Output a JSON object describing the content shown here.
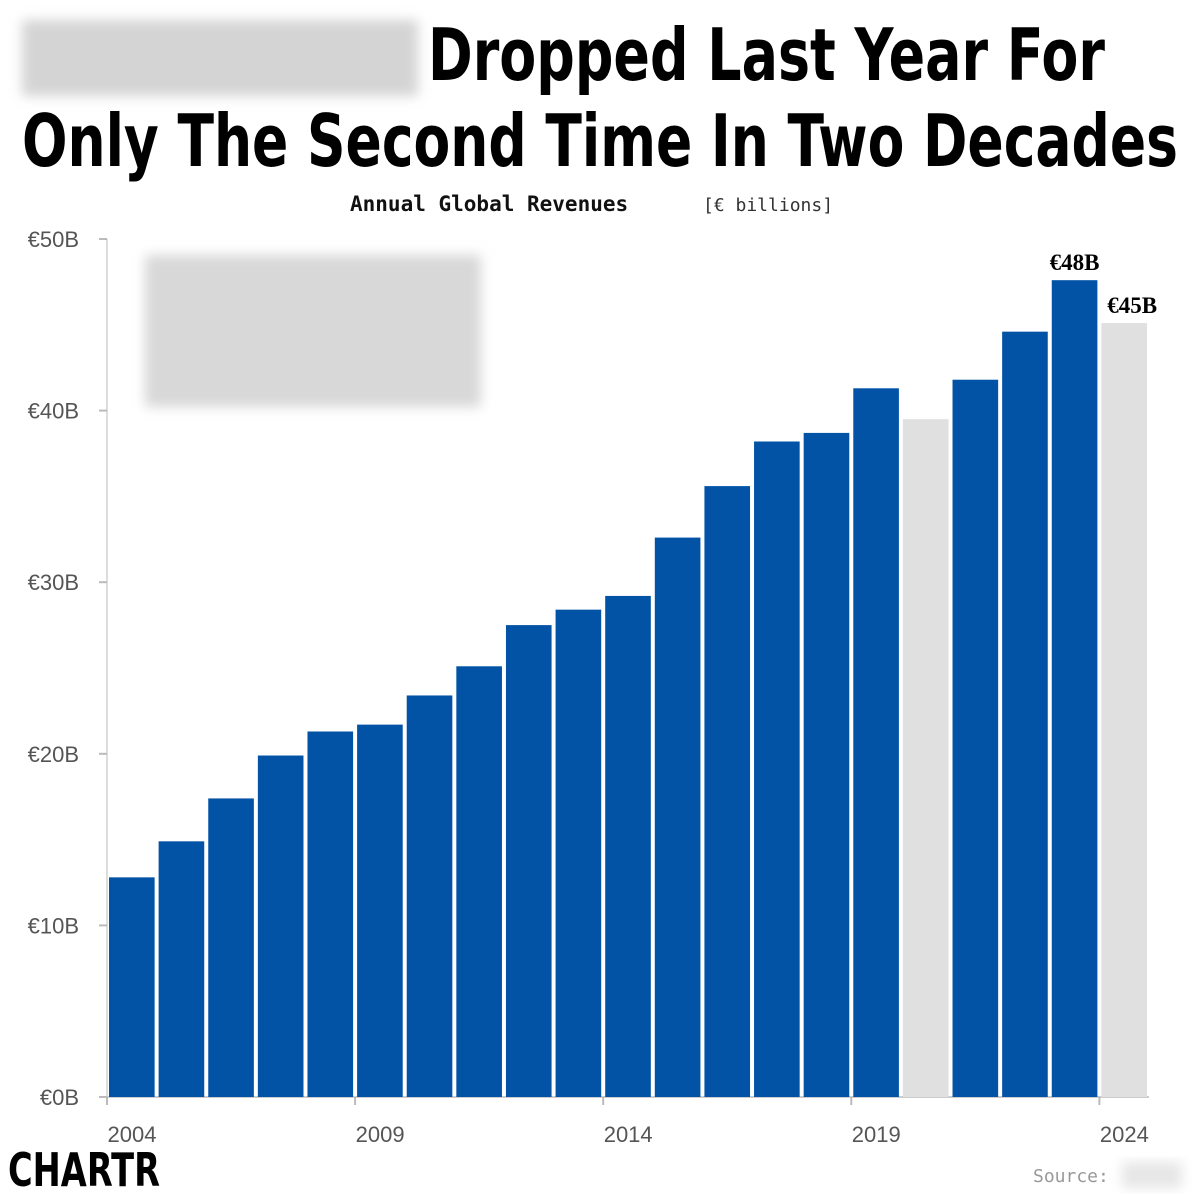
{
  "chart_data": {
    "type": "bar",
    "title": [
      "Dropped Last Year For",
      "Only The Second Time In Two Decades"
    ],
    "subtitle": "Annual Global Revenues",
    "unit_label": "[€ billions]",
    "x": [
      2004,
      2005,
      2006,
      2007,
      2008,
      2009,
      2010,
      2011,
      2012,
      2013,
      2014,
      2015,
      2016,
      2017,
      2018,
      2019,
      2020,
      2021,
      2022,
      2023,
      2024
    ],
    "values": [
      12.8,
      14.9,
      17.4,
      19.9,
      21.3,
      21.7,
      23.4,
      25.1,
      27.5,
      28.4,
      29.2,
      32.6,
      35.6,
      38.2,
      38.7,
      41.3,
      39.5,
      41.8,
      44.6,
      47.6,
      45.1
    ],
    "value_labels": [
      null,
      null,
      null,
      null,
      null,
      null,
      null,
      null,
      null,
      null,
      null,
      null,
      null,
      null,
      null,
      null,
      null,
      null,
      null,
      "€48B",
      "€45B"
    ],
    "colors": [
      "#0253a6",
      "#0253a6",
      "#0253a6",
      "#0253a6",
      "#0253a6",
      "#0253a6",
      "#0253a6",
      "#0253a6",
      "#0253a6",
      "#0253a6",
      "#0253a6",
      "#0253a6",
      "#0253a6",
      "#0253a6",
      "#0253a6",
      "#0253a6",
      "#e0e0e0",
      "#0253a6",
      "#0253a6",
      "#0253a6",
      "#e0e0e0"
    ],
    "xlim": [
      2004,
      2025
    ],
    "xticks": [
      2004,
      2009,
      2014,
      2019,
      2024
    ],
    "ylim": [
      0,
      50
    ],
    "yticks": [
      {
        "value": 0,
        "label": "€0B"
      },
      {
        "value": 10,
        "label": "€10B"
      },
      {
        "value": 20,
        "label": "€20B"
      },
      {
        "value": 30,
        "label": "€30B"
      },
      {
        "value": 40,
        "label": "€40B"
      },
      {
        "value": 50,
        "label": "€50B"
      }
    ],
    "grid": false,
    "source": "Source:",
    "logo": "CHARTR"
  }
}
